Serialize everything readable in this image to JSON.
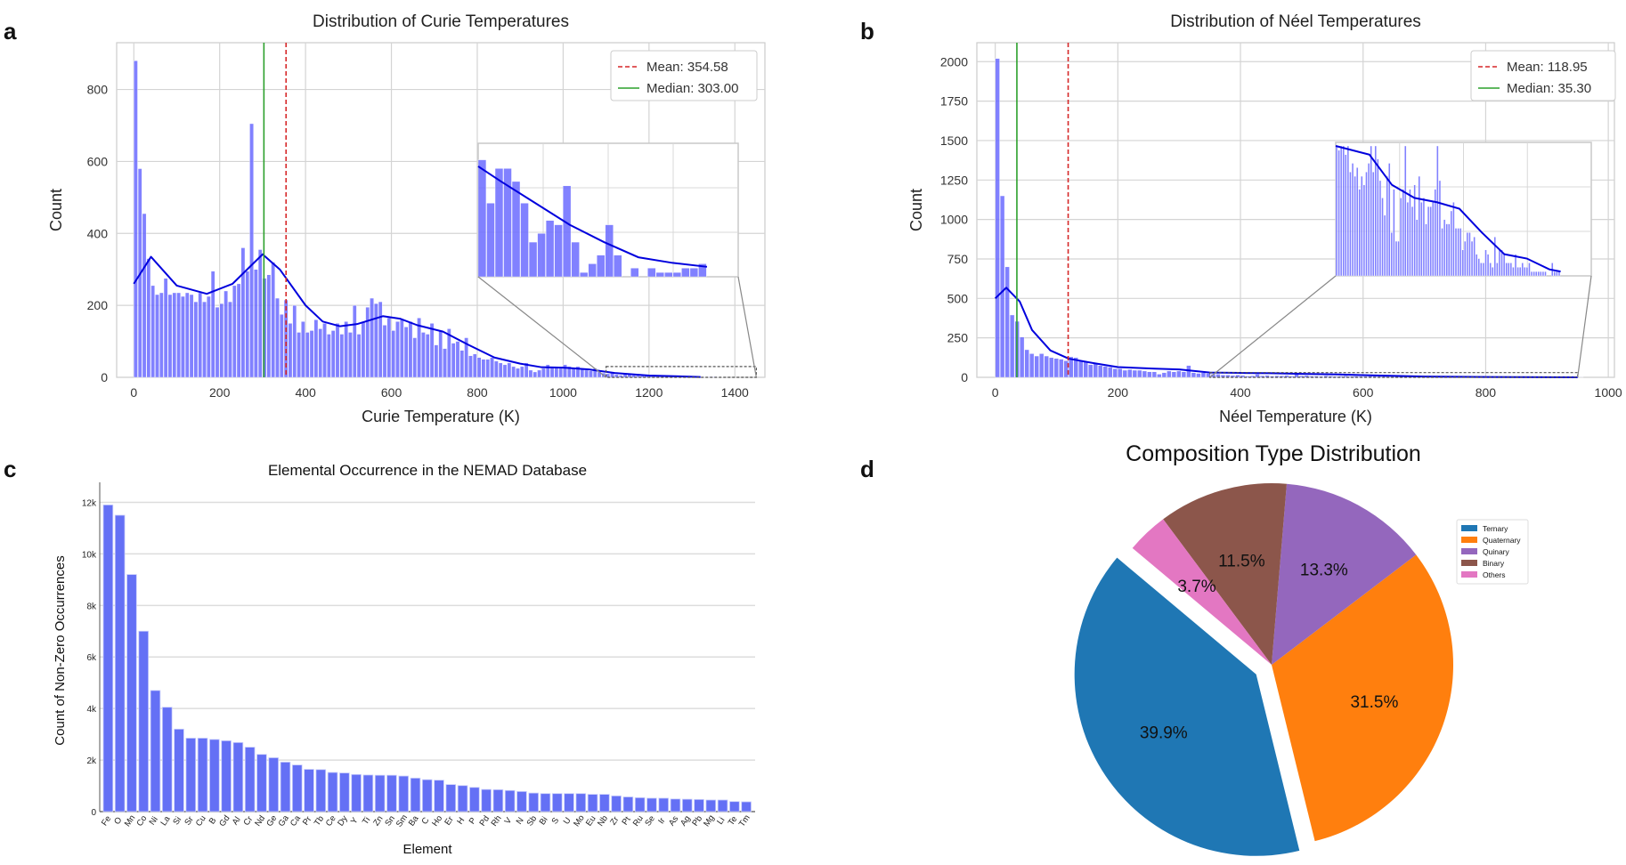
{
  "panels": {
    "a": "a",
    "b": "b",
    "c": "c",
    "d": "d"
  },
  "chart_data": [
    {
      "id": "curie",
      "type": "histogram",
      "title": "Distribution of Curie Temperatures",
      "xlabel": "Curie Temperature (K)",
      "ylabel": "Count",
      "xlim": [
        -40,
        1470
      ],
      "ylim": [
        0,
        930
      ],
      "xticks": [
        0,
        200,
        400,
        600,
        800,
        1000,
        1200,
        1400
      ],
      "yticks": [
        0,
        200,
        400,
        600,
        800
      ],
      "grid": true,
      "bin_width": 10,
      "bin_start": 0,
      "counts": [
        880,
        580,
        455,
        330,
        255,
        230,
        235,
        275,
        230,
        235,
        235,
        225,
        235,
        230,
        210,
        235,
        210,
        225,
        295,
        195,
        205,
        240,
        210,
        255,
        260,
        360,
        295,
        705,
        300,
        355,
        275,
        285,
        320,
        220,
        175,
        215,
        150,
        200,
        125,
        155,
        125,
        130,
        160,
        135,
        150,
        120,
        130,
        150,
        120,
        155,
        125,
        200,
        120,
        155,
        195,
        220,
        205,
        210,
        145,
        165,
        130,
        155,
        160,
        140,
        155,
        110,
        165,
        125,
        120,
        150,
        90,
        130,
        80,
        135,
        95,
        100,
        75,
        110,
        60,
        65,
        55,
        50,
        50,
        55,
        45,
        40,
        35,
        40,
        30,
        25,
        30,
        40,
        20,
        15,
        20,
        25,
        35,
        30,
        30,
        25,
        35,
        30,
        25,
        30,
        25,
        20,
        18,
        25,
        15,
        12,
        10,
        12,
        8,
        6,
        10,
        8,
        6,
        5,
        4,
        4,
        3,
        3,
        3,
        5,
        4,
        3,
        2,
        2,
        3,
        4,
        2,
        2,
        2,
        1,
        2,
        2,
        1,
        1
      ],
      "kde": [
        [
          0,
          260
        ],
        [
          40,
          335
        ],
        [
          100,
          255
        ],
        [
          170,
          232
        ],
        [
          230,
          260
        ],
        [
          300,
          342
        ],
        [
          340,
          300
        ],
        [
          400,
          200
        ],
        [
          440,
          155
        ],
        [
          480,
          142
        ],
        [
          520,
          148
        ],
        [
          580,
          170
        ],
        [
          620,
          163
        ],
        [
          660,
          145
        ],
        [
          720,
          127
        ],
        [
          780,
          90
        ],
        [
          840,
          55
        ],
        [
          900,
          38
        ],
        [
          950,
          28
        ],
        [
          1000,
          27
        ],
        [
          1060,
          22
        ],
        [
          1120,
          12
        ],
        [
          1200,
          5
        ],
        [
          1320,
          1
        ]
      ],
      "mean": {
        "value": 354.58,
        "label": "Mean: 354.58",
        "color": "#d62728"
      },
      "median": {
        "value": 303.0,
        "label": "Median: 303.00",
        "color": "#2ca02c"
      },
      "legend": "top-right",
      "inset": {
        "x_range": [
          1100,
          1450
        ],
        "y_range": [
          0,
          30
        ],
        "counts": [
          27,
          17,
          25,
          25,
          22,
          17,
          8,
          10,
          13,
          12,
          21,
          8,
          1,
          3,
          5,
          12,
          5,
          0,
          2,
          0,
          2,
          1,
          1,
          1,
          2,
          2,
          3
        ],
        "kde": [
          [
            0,
            25.5
          ],
          [
            0.1,
            22
          ],
          [
            0.25,
            17
          ],
          [
            0.4,
            12
          ],
          [
            0.55,
            8
          ],
          [
            0.7,
            4.5
          ],
          [
            0.85,
            3.2
          ],
          [
            1.0,
            2.3
          ]
        ]
      },
      "bar_color": "#6b6bff",
      "kde_color": "#0000dd"
    },
    {
      "id": "neel",
      "type": "histogram",
      "title": "Distribution of Néel Temperatures",
      "xlabel": "Néel Temperature (K)",
      "ylabel": "Count",
      "xlim": [
        -30,
        1010
      ],
      "ylim": [
        0,
        2120
      ],
      "xticks": [
        0,
        200,
        400,
        600,
        800,
        1000
      ],
      "yticks": [
        0,
        250,
        500,
        750,
        1000,
        1250,
        1500,
        1750,
        2000
      ],
      "grid": true,
      "bin_width": 8,
      "bin_start": 0,
      "counts": [
        2020,
        1150,
        700,
        395,
        355,
        255,
        175,
        150,
        135,
        150,
        135,
        125,
        120,
        115,
        105,
        130,
        125,
        105,
        100,
        80,
        90,
        75,
        70,
        65,
        55,
        55,
        45,
        50,
        45,
        45,
        40,
        35,
        35,
        20,
        30,
        40,
        35,
        40,
        35,
        75,
        30,
        25,
        30,
        25,
        20,
        20,
        15,
        15,
        12,
        15,
        12,
        8,
        10,
        20,
        10,
        12,
        8,
        10,
        10,
        12,
        8,
        18,
        10,
        12,
        8,
        8,
        6,
        10,
        8,
        6,
        8,
        10,
        6,
        8,
        6,
        6,
        8,
        6,
        6,
        8,
        5,
        5,
        6,
        5,
        4,
        4,
        3,
        4,
        3,
        3,
        3,
        2,
        3,
        2,
        2,
        2,
        2,
        1,
        2,
        1,
        2,
        1,
        1,
        1,
        1,
        1,
        1,
        1,
        1,
        1,
        1,
        1,
        1,
        1,
        1,
        1,
        1,
        1,
        1,
        1
      ],
      "kde": [
        [
          0,
          500
        ],
        [
          18,
          568
        ],
        [
          40,
          480
        ],
        [
          60,
          300
        ],
        [
          90,
          170
        ],
        [
          120,
          118
        ],
        [
          160,
          90
        ],
        [
          200,
          65
        ],
        [
          260,
          55
        ],
        [
          300,
          50
        ],
        [
          350,
          30
        ],
        [
          400,
          28
        ],
        [
          450,
          26
        ],
        [
          500,
          22
        ],
        [
          560,
          18
        ],
        [
          620,
          12
        ],
        [
          700,
          5
        ],
        [
          800,
          2
        ],
        [
          950,
          0
        ]
      ],
      "mean": {
        "value": 118.95,
        "label": "Mean: 118.95",
        "color": "#d62728"
      },
      "median": {
        "value": 35.3,
        "label": "Median: 35.30",
        "color": "#2ca02c"
      },
      "legend": "top-right",
      "inset": {
        "x_range": [
          350,
          950
        ],
        "y_range": [
          0,
          30
        ],
        "counts": [
          30,
          29,
          30,
          30,
          28,
          30,
          24,
          26,
          23,
          25,
          20,
          23,
          21,
          24,
          26,
          30,
          24,
          30,
          27,
          22,
          18,
          14,
          23,
          26,
          10,
          20,
          8,
          8,
          18,
          20,
          30,
          17,
          20,
          16,
          21,
          13,
          23,
          17,
          18,
          12,
          16,
          16,
          17,
          20,
          30,
          22,
          11,
          13,
          12,
          12,
          15,
          17,
          11,
          11,
          11,
          6,
          8,
          10,
          10,
          8,
          9,
          5,
          4,
          3,
          3,
          6,
          5,
          3,
          2,
          9,
          3,
          6,
          6,
          5,
          3,
          3,
          3,
          2,
          5,
          2,
          2,
          3,
          2,
          2,
          3,
          1,
          1,
          1,
          1,
          1,
          1,
          1,
          0,
          0,
          3,
          1,
          1,
          1
        ],
        "kde": [
          [
            0,
            30
          ],
          [
            0.15,
            28
          ],
          [
            0.25,
            21
          ],
          [
            0.35,
            18
          ],
          [
            0.45,
            17
          ],
          [
            0.55,
            15.5
          ],
          [
            0.65,
            10
          ],
          [
            0.75,
            5
          ],
          [
            0.85,
            4
          ],
          [
            0.95,
            1.5
          ],
          [
            1.0,
            1
          ]
        ]
      },
      "bar_color": "#6b6bff",
      "kde_color": "#0000dd"
    },
    {
      "id": "elements",
      "type": "bar",
      "title": "Elemental Occurrence in the NEMAD Database",
      "xlabel": "Element",
      "ylabel": "Count of Non-Zero Occurrences",
      "ylim": [
        0,
        12500
      ],
      "yticks": [
        0,
        2000,
        4000,
        6000,
        8000,
        10000,
        12000
      ],
      "ytick_labels": [
        "0",
        "2k",
        "4k",
        "6k",
        "8k",
        "10k",
        "12k"
      ],
      "grid": true,
      "categories": [
        "Fe",
        "O",
        "Mn",
        "Co",
        "Ni",
        "La",
        "Si",
        "Sr",
        "Cu",
        "B",
        "Gd",
        "Al",
        "Cr",
        "Nd",
        "Ge",
        "Ga",
        "Ca",
        "Pr",
        "Tb",
        "Ce",
        "Dy",
        "Y",
        "Ti",
        "Zn",
        "Sn",
        "Sm",
        "Ba",
        "C",
        "Ho",
        "Er",
        "H",
        "P",
        "Pd",
        "Rh",
        "V",
        "N",
        "Sb",
        "Bi",
        "S",
        "U",
        "Mo",
        "Eu",
        "Nb",
        "Zr",
        "Pt",
        "Ru",
        "Se",
        "Ir",
        "As",
        "Ag",
        "Pb",
        "Mg",
        "Li",
        "Te",
        "Tm"
      ],
      "values": [
        11900,
        11500,
        9200,
        7000,
        4700,
        4050,
        3200,
        2850,
        2850,
        2800,
        2750,
        2680,
        2500,
        2220,
        2090,
        1920,
        1810,
        1640,
        1630,
        1520,
        1500,
        1440,
        1420,
        1410,
        1410,
        1380,
        1300,
        1240,
        1220,
        1050,
        1010,
        940,
        860,
        850,
        820,
        780,
        720,
        700,
        700,
        700,
        700,
        670,
        670,
        610,
        570,
        540,
        520,
        520,
        490,
        480,
        470,
        450,
        450,
        390,
        380
      ],
      "bar_color": "#6470f5"
    },
    {
      "id": "composition",
      "type": "pie",
      "title": "Composition Type Distribution",
      "labels": [
        "Ternary",
        "Quaternary",
        "Quinary",
        "Binary",
        "Others"
      ],
      "values": [
        39.9,
        31.5,
        13.3,
        11.5,
        3.7
      ],
      "value_labels": [
        "39.9%",
        "31.5%",
        "13.3%",
        "11.5%",
        "3.7%"
      ],
      "colors": [
        "#1f77b4",
        "#ff7f0e",
        "#9467bd",
        "#8c564b",
        "#e377c2"
      ],
      "explode": [
        0.1,
        0,
        0,
        0,
        0
      ],
      "start_angle_deg": 140,
      "legend": "right"
    }
  ]
}
